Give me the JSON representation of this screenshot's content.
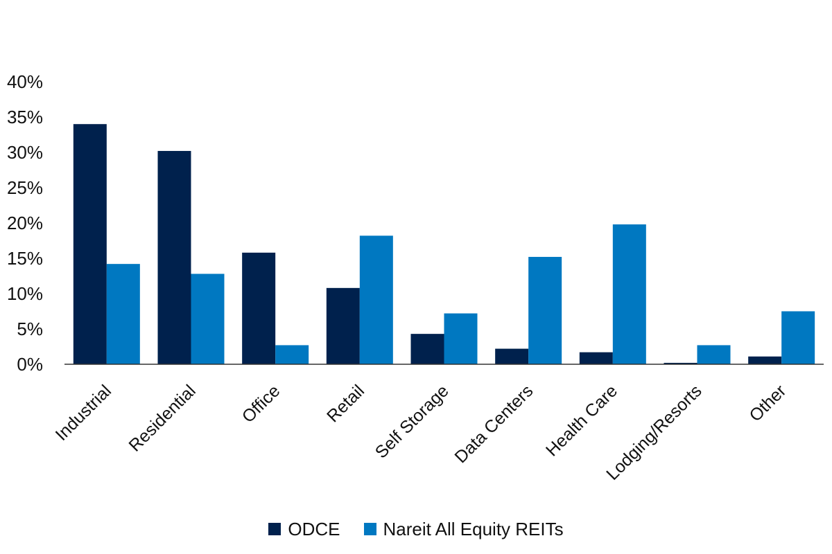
{
  "chart_data": {
    "type": "bar",
    "categories": [
      "Industrial",
      "Residential",
      "Office",
      "Retail",
      "Self Storage",
      "Data Centers",
      "Health Care",
      "Lodging/Resorts",
      "Other"
    ],
    "series": [
      {
        "name": "ODCE",
        "color": "#00214d",
        "values": [
          34,
          30.2,
          15.8,
          10.8,
          4.3,
          2.2,
          1.7,
          0.2,
          1.1
        ]
      },
      {
        "name": "Nareit All Equity REITs",
        "color": "#0078c1",
        "values": [
          14.2,
          12.8,
          2.7,
          18.2,
          7.2,
          15.2,
          19.8,
          2.7,
          7.5
        ]
      }
    ],
    "y_ticks": [
      "0%",
      "5%",
      "10%",
      "15%",
      "20%",
      "25%",
      "30%",
      "35%",
      "40%"
    ],
    "ylim": [
      0,
      40
    ],
    "grid": false,
    "legend_position": "bottom-center"
  }
}
